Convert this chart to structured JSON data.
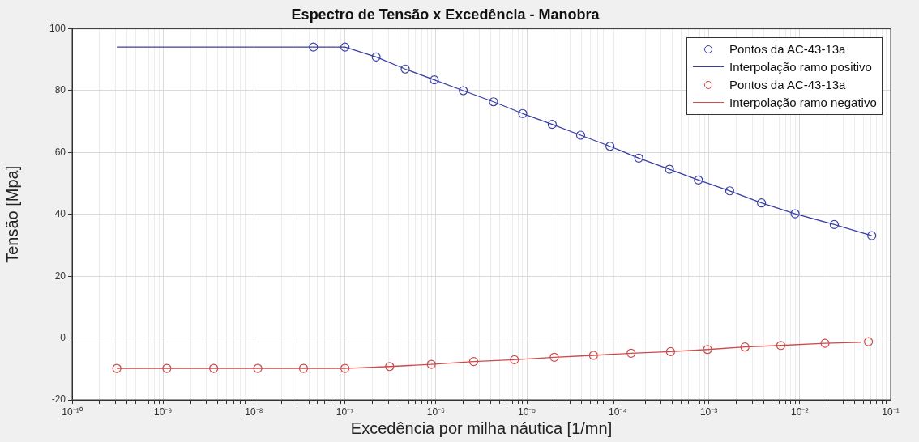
{
  "chart_data": {
    "type": "line",
    "title": "Espectro de Tensão x Excedência - Manobra",
    "xlabel": "Excedência por milha náutica [1/mn]",
    "ylabel": "Tensão [Mpa]",
    "log": "x",
    "grid": true,
    "legend": "top right",
    "xlim": [
      1e-10,
      0.1
    ],
    "ylim": [
      -20,
      100
    ],
    "xticks": [
      {
        "value": 1e-10,
        "label": "10⁻¹⁰"
      },
      {
        "value": 2e-10,
        "label": null
      },
      {
        "value": 3e-10,
        "label": null
      },
      {
        "value": 4e-10,
        "label": null
      },
      {
        "value": 5e-10,
        "label": null
      },
      {
        "value": 6e-10,
        "label": null
      },
      {
        "value": 7e-10,
        "label": null
      },
      {
        "value": 8e-10,
        "label": null
      },
      {
        "value": 9e-10,
        "label": null
      },
      {
        "value": 1e-09,
        "label": "10⁻⁹"
      },
      {
        "value": 2e-09,
        "label": null
      },
      {
        "value": 3e-09,
        "label": null
      },
      {
        "value": 4e-09,
        "label": null
      },
      {
        "value": 5e-09,
        "label": null
      },
      {
        "value": 6e-09,
        "label": null
      },
      {
        "value": 7e-09,
        "label": null
      },
      {
        "value": 8e-09,
        "label": null
      },
      {
        "value": 9e-09,
        "label": null
      },
      {
        "value": 1e-08,
        "label": "10⁻⁸"
      },
      {
        "value": 2e-08,
        "label": null
      },
      {
        "value": 3e-08,
        "label": null
      },
      {
        "value": 4e-08,
        "label": null
      },
      {
        "value": 5e-08,
        "label": null
      },
      {
        "value": 6e-08,
        "label": null
      },
      {
        "value": 7e-08,
        "label": null
      },
      {
        "value": 8e-08,
        "label": null
      },
      {
        "value": 9e-08,
        "label": null
      },
      {
        "value": 1e-07,
        "label": "10⁻⁷"
      },
      {
        "value": 2e-07,
        "label": null
      },
      {
        "value": 3e-07,
        "label": null
      },
      {
        "value": 4e-07,
        "label": null
      },
      {
        "value": 5e-07,
        "label": null
      },
      {
        "value": 6e-07,
        "label": null
      },
      {
        "value": 7e-07,
        "label": null
      },
      {
        "value": 8e-07,
        "label": null
      },
      {
        "value": 9e-07,
        "label": null
      },
      {
        "value": 1e-06,
        "label": "10⁻⁶"
      },
      {
        "value": 2e-06,
        "label": null
      },
      {
        "value": 3e-06,
        "label": null
      },
      {
        "value": 4e-06,
        "label": null
      },
      {
        "value": 5e-06,
        "label": null
      },
      {
        "value": 6e-06,
        "label": null
      },
      {
        "value": 7e-06,
        "label": null
      },
      {
        "value": 8e-06,
        "label": null
      },
      {
        "value": 9e-06,
        "label": null
      },
      {
        "value": 1e-05,
        "label": "10⁻⁵"
      },
      {
        "value": 2e-05,
        "label": null
      },
      {
        "value": 3e-05,
        "label": null
      },
      {
        "value": 4e-05,
        "label": null
      },
      {
        "value": 5e-05,
        "label": null
      },
      {
        "value": 6e-05,
        "label": null
      },
      {
        "value": 7e-05,
        "label": null
      },
      {
        "value": 8e-05,
        "label": null
      },
      {
        "value": 9e-05,
        "label": null
      },
      {
        "value": 0.0001,
        "label": "10⁻⁴"
      },
      {
        "value": 0.0002,
        "label": null
      },
      {
        "value": 0.0003,
        "label": null
      },
      {
        "value": 0.0004,
        "label": null
      },
      {
        "value": 0.0005,
        "label": null
      },
      {
        "value": 0.0006,
        "label": null
      },
      {
        "value": 0.0007,
        "label": null
      },
      {
        "value": 0.0008,
        "label": null
      },
      {
        "value": 0.0009,
        "label": null
      },
      {
        "value": 0.001,
        "label": "10⁻³"
      },
      {
        "value": 0.002,
        "label": null
      },
      {
        "value": 0.003,
        "label": null
      },
      {
        "value": 0.004,
        "label": null
      },
      {
        "value": 0.005,
        "label": null
      },
      {
        "value": 0.006,
        "label": null
      },
      {
        "value": 0.007,
        "label": null
      },
      {
        "value": 0.008,
        "label": null
      },
      {
        "value": 0.009,
        "label": null
      },
      {
        "value": 0.01,
        "label": "10⁻²"
      },
      {
        "value": 0.02,
        "label": null
      },
      {
        "value": 0.03,
        "label": null
      },
      {
        "value": 0.04,
        "label": null
      },
      {
        "value": 0.05,
        "label": null
      },
      {
        "value": 0.06,
        "label": null
      },
      {
        "value": 0.07,
        "label": null
      },
      {
        "value": 0.08,
        "label": null
      },
      {
        "value": 0.09,
        "label": null
      },
      {
        "value": 0.1,
        "label": "10⁻¹"
      }
    ],
    "yticks": [
      -20,
      0,
      20,
      40,
      60,
      80,
      100
    ],
    "series": [
      {
        "name": "Pontos da AC-43-13a",
        "type": "scatter",
        "marker": "circle",
        "color": "#3a3fa6",
        "x": [
          4.5e-08,
          1e-07,
          2.2e-07,
          4.6e-07,
          9.6e-07,
          2e-06,
          4.3e-06,
          9e-06,
          1.9e-05,
          3.9e-05,
          8.2e-05,
          0.00017,
          0.00037,
          0.00077,
          0.0017,
          0.0038,
          0.0089,
          0.024,
          0.062
        ],
        "values": [
          94.1,
          94.1,
          90.9,
          87.0,
          83.5,
          80.0,
          76.4,
          72.6,
          69.1,
          65.6,
          62.0,
          58.2,
          54.6,
          51.1,
          47.6,
          43.7,
          40.2,
          36.7,
          33.1
        ]
      },
      {
        "name": "Interpolação ramo positivo",
        "type": "line",
        "color": "#3a3fa6",
        "x": [
          3.1e-10,
          4.5e-08,
          1e-07,
          2.2e-07,
          4.6e-07,
          9.6e-07,
          2e-06,
          4.3e-06,
          9e-06,
          1.9e-05,
          3.9e-05,
          8.2e-05,
          0.00017,
          0.00037,
          0.00077,
          0.0017,
          0.0038,
          0.0089,
          0.024,
          0.062
        ],
        "values": [
          94.1,
          94.1,
          94.1,
          90.9,
          87.0,
          83.5,
          80.0,
          76.4,
          72.6,
          69.1,
          65.6,
          62.0,
          58.2,
          54.6,
          51.1,
          47.6,
          43.7,
          40.2,
          36.7,
          33.1
        ]
      },
      {
        "name": "Pontos da AC-43-13a",
        "type": "scatter",
        "marker": "circle",
        "color": "#d04848",
        "x": [
          3.1e-10,
          1.1e-09,
          3.6e-09,
          1.1e-08,
          3.5e-08,
          1e-07,
          3.1e-07,
          8.9e-07,
          2.6e-06,
          7.3e-06,
          2e-05,
          5.4e-05,
          0.00014,
          0.00038,
          0.00097,
          0.0025,
          0.0062,
          0.019,
          0.057
        ],
        "values": [
          -9.8,
          -9.8,
          -9.8,
          -9.8,
          -9.8,
          -9.8,
          -9.2,
          -8.5,
          -7.6,
          -7.0,
          -6.2,
          -5.6,
          -4.9,
          -4.4,
          -3.7,
          -2.9,
          -2.4,
          -1.7,
          -1.2
        ]
      },
      {
        "name": "Interpolação ramo negativo",
        "type": "line",
        "color": "#d04848",
        "x": [
          3.1e-10,
          1.1e-09,
          3.6e-09,
          1.1e-08,
          3.5e-08,
          1e-07,
          3.1e-07,
          8.9e-07,
          2.6e-06,
          7.3e-06,
          2e-05,
          5.4e-05,
          0.00014,
          0.00038,
          0.00097,
          0.0025,
          0.0062,
          0.019,
          0.047
        ],
        "values": [
          -9.8,
          -9.8,
          -9.8,
          -9.8,
          -9.8,
          -9.8,
          -9.2,
          -8.5,
          -7.6,
          -7.0,
          -6.2,
          -5.6,
          -4.9,
          -4.4,
          -3.7,
          -2.9,
          -2.4,
          -1.7,
          -1.4
        ]
      }
    ]
  }
}
